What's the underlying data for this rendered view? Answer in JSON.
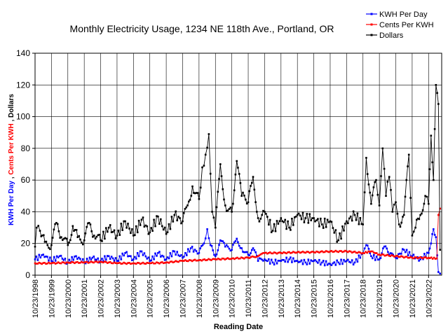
{
  "chart_data": {
    "type": "line",
    "title": "Monthly Electricity Usage, 1234 NE 118th Ave., Portland, OR",
    "xlabel": "Reading Date",
    "ylabel_parts": [
      {
        "text": "KWH Per Day",
        "color": "#0000ff"
      },
      {
        "text": " , ",
        "color": "#000000"
      },
      {
        "text": "Cents Per KWH",
        "color": "#ff0000"
      },
      {
        "text": " , ",
        "color": "#000000"
      },
      {
        "text": "Dollars",
        "color": "#000000"
      }
    ],
    "ylim": [
      0,
      140
    ],
    "yticks": [
      0,
      20,
      40,
      60,
      80,
      100,
      120,
      140
    ],
    "xlim": [
      1998.0,
      2022.8
    ],
    "x_tick_labels": [
      "10/23/1998",
      "10/23/1999",
      "10/23/2000",
      "10/23/2001",
      "10/23/2002",
      "10/23/2003",
      "10/23/2004",
      "10/23/2005",
      "10/23/2006",
      "10/23/2007",
      "10/23/2008",
      "10/23/2009",
      "10/23/2010",
      "10/23/2011",
      "10/23/2012",
      "10/23/2013",
      "10/23/2014",
      "10/23/2015",
      "10/23/2016",
      "10/23/2017",
      "10/23/2018",
      "10/23/2019",
      "10/23/2020",
      "10/23/2021",
      "10/23/2022"
    ],
    "grid": true,
    "legend_position": "top-right",
    "series": [
      {
        "name": "KWH Per Day",
        "color": "#0000ff",
        "x": [
          1998.0,
          1998.5,
          1999.0,
          1999.5,
          2000.0,
          2000.5,
          2001.0,
          2001.5,
          2002.0,
          2002.5,
          2003.0,
          2003.5,
          2004.0,
          2004.5,
          2005.0,
          2005.5,
          2006.0,
          2006.5,
          2007.0,
          2007.5,
          2008.0,
          2008.3,
          2008.5,
          2008.7,
          2009.0,
          2009.3,
          2009.6,
          2010.0,
          2010.3,
          2010.6,
          2011.0,
          2011.3,
          2011.6,
          2012.0,
          2012.5,
          2013.0,
          2013.5,
          2014.0,
          2014.5,
          2015.0,
          2015.5,
          2016.0,
          2016.5,
          2017.0,
          2017.5,
          2018.0,
          2018.2,
          2018.5,
          2019.0,
          2019.3,
          2019.6,
          2020.0,
          2020.5,
          2021.0,
          2021.5,
          2022.0,
          2022.15,
          2022.3,
          2022.45,
          2022.6,
          2022.7
        ],
        "values": [
          10,
          13,
          9,
          12,
          8,
          12,
          8,
          11,
          9,
          12,
          9,
          14,
          10,
          15,
          9,
          14,
          10,
          15,
          11,
          17,
          14,
          20,
          29,
          19,
          12,
          22,
          18,
          16,
          23,
          17,
          13,
          17,
          9,
          10,
          8,
          9,
          10,
          9,
          8,
          9,
          8,
          7,
          8,
          9,
          8,
          14,
          19,
          12,
          10,
          18,
          13,
          11,
          16,
          12,
          10,
          14,
          20,
          29,
          24,
          2,
          1
        ]
      },
      {
        "name": "Cents Per KWH",
        "color": "#ff0000",
        "x": [
          1998.0,
          1999.0,
          2000.0,
          2001.0,
          2002.0,
          2003.0,
          2004.0,
          2005.0,
          2006.0,
          2007.0,
          2008.0,
          2009.0,
          2010.0,
          2011.0,
          2011.6,
          2012.0,
          2013.0,
          2014.0,
          2015.0,
          2016.0,
          2017.0,
          2018.0,
          2018.5,
          2019.0,
          2020.0,
          2021.0,
          2022.0,
          2022.5,
          2022.6,
          2022.7
        ],
        "values": [
          7.5,
          7.5,
          8,
          8,
          8.5,
          7.5,
          7.5,
          7.5,
          8,
          9,
          9.5,
          10,
          10.5,
          11,
          12,
          14,
          14,
          14.5,
          14.5,
          15,
          15,
          14,
          15,
          13,
          12,
          11,
          11,
          10.5,
          38,
          42
        ]
      },
      {
        "name": "Dollars",
        "color": "#000000",
        "x": [
          1998.0,
          1998.1,
          1998.3,
          1998.6,
          1999.0,
          1999.3,
          1999.6,
          2000.0,
          2000.3,
          2000.6,
          2001.0,
          2001.3,
          2001.6,
          2002.0,
          2002.5,
          2003.0,
          2003.5,
          2004.0,
          2004.5,
          2005.0,
          2005.5,
          2006.0,
          2006.5,
          2007.0,
          2007.3,
          2007.6,
          2008.0,
          2008.2,
          2008.4,
          2008.6,
          2008.8,
          2009.0,
          2009.3,
          2009.6,
          2010.0,
          2010.3,
          2010.6,
          2011.0,
          2011.3,
          2011.6,
          2012.0,
          2012.5,
          2013.0,
          2013.5,
          2014.0,
          2014.5,
          2015.0,
          2015.5,
          2016.0,
          2016.5,
          2017.0,
          2017.5,
          2018.0,
          2018.2,
          2018.5,
          2018.8,
          2019.0,
          2019.2,
          2019.4,
          2019.6,
          2019.8,
          2020.0,
          2020.2,
          2020.5,
          2020.8,
          2021.0,
          2021.2,
          2021.5,
          2021.8,
          2022.0,
          2022.15,
          2022.3,
          2022.45,
          2022.6,
          2022.7
        ],
        "values": [
          18,
          30,
          28,
          21,
          19,
          33,
          24,
          19,
          31,
          24,
          22,
          33,
          25,
          22,
          30,
          25,
          34,
          25,
          35,
          27,
          37,
          26,
          38,
          34,
          44,
          56,
          48,
          68,
          76,
          89,
          40,
          30,
          70,
          44,
          40,
          72,
          50,
          46,
          62,
          36,
          40,
          28,
          36,
          30,
          38,
          36,
          36,
          32,
          34,
          22,
          34,
          38,
          32,
          74,
          45,
          60,
          44,
          80,
          50,
          62,
          40,
          46,
          32,
          38,
          76,
          25,
          30,
          38,
          50,
          45,
          88,
          60,
          120,
          108,
          16
        ]
      }
    ]
  }
}
